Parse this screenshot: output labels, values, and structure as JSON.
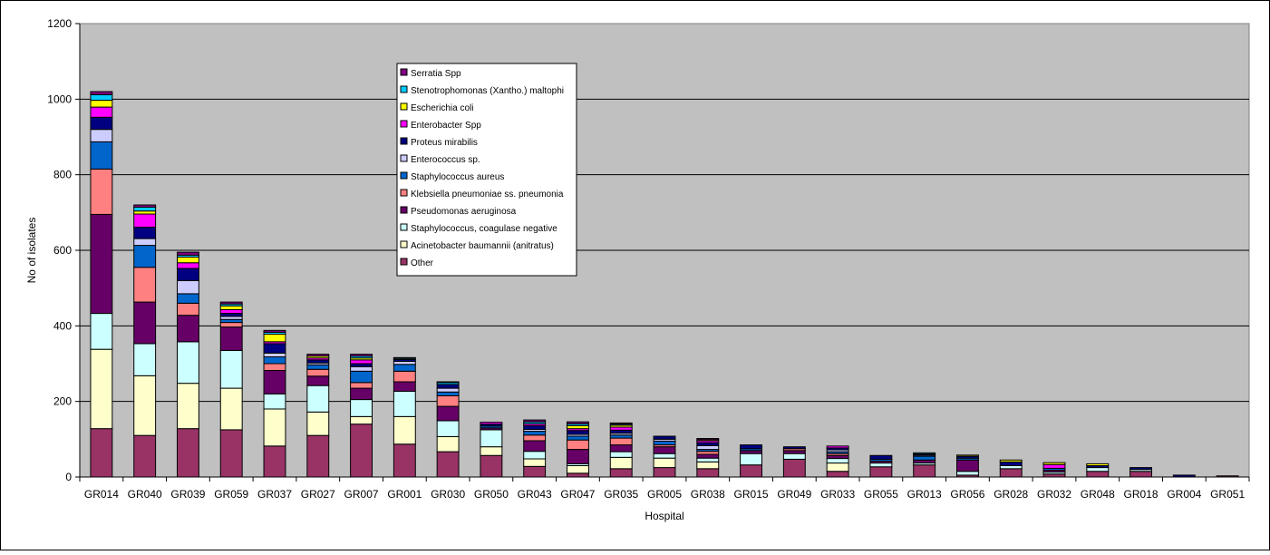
{
  "chart_data": {
    "type": "bar",
    "stacked": true,
    "xlabel": "Hospital",
    "ylabel": "No of isolates",
    "ylim": [
      0,
      1200
    ],
    "yticks": [
      0,
      200,
      400,
      600,
      800,
      1000,
      1200
    ],
    "grid": true,
    "legend_position": "top-center",
    "plot_background": "#C0C0C0",
    "categories": [
      "GR014",
      "GR040",
      "GR039",
      "GR059",
      "GR037",
      "GR027",
      "GR007",
      "GR001",
      "GR030",
      "GR050",
      "GR043",
      "GR047",
      "GR035",
      "GR005",
      "GR038",
      "GR015",
      "GR049",
      "GR033",
      "GR055",
      "GR013",
      "GR056",
      "GR028",
      "GR032",
      "GR048",
      "GR018",
      "GR004",
      "GR051"
    ],
    "series": [
      {
        "name": "Other",
        "color": "#993366",
        "values": [
          128,
          110,
          128,
          125,
          82,
          110,
          140,
          87,
          67,
          57,
          28,
          10,
          22,
          25,
          22,
          32,
          47,
          15,
          27,
          32,
          5,
          22,
          8,
          15,
          15,
          0,
          3
        ]
      },
      {
        "name": "Acinetobacter baumannii (anitratus)",
        "color": "#FFFFCC",
        "values": [
          210,
          158,
          120,
          110,
          98,
          62,
          20,
          73,
          40,
          23,
          20,
          20,
          30,
          25,
          18,
          0,
          0,
          22,
          0,
          0,
          0,
          0,
          0,
          0,
          0,
          0,
          0
        ]
      },
      {
        "name": "Staphylococcus, coagulase negative",
        "color": "#CCFFFF",
        "values": [
          95,
          85,
          110,
          100,
          40,
          70,
          45,
          67,
          42,
          45,
          20,
          5,
          15,
          12,
          10,
          30,
          15,
          12,
          10,
          5,
          10,
          8,
          5,
          10,
          5,
          0,
          0
        ]
      },
      {
        "name": "Pseudomonas aeruginosa",
        "color": "#660066",
        "values": [
          262,
          110,
          70,
          62,
          62,
          25,
          30,
          25,
          38,
          5,
          28,
          38,
          18,
          18,
          10,
          8,
          8,
          8,
          5,
          8,
          30,
          0,
          5,
          0,
          0,
          0,
          0
        ]
      },
      {
        "name": "Klebsiella pneumoniae ss. pneumonia",
        "color": "#FF8080",
        "values": [
          120,
          92,
          32,
          12,
          18,
          18,
          15,
          28,
          28,
          0,
          15,
          25,
          18,
          5,
          8,
          0,
          5,
          5,
          0,
          0,
          0,
          0,
          0,
          0,
          0,
          0,
          0
        ]
      },
      {
        "name": "Staphylococcus aureus",
        "color": "#0066CC",
        "values": [
          72,
          58,
          25,
          8,
          18,
          12,
          30,
          18,
          10,
          5,
          10,
          10,
          8,
          10,
          5,
          5,
          0,
          5,
          5,
          10,
          5,
          0,
          5,
          0,
          0,
          0,
          0
        ]
      },
      {
        "name": "Enterococcus sp.",
        "color": "#CCCCFF",
        "values": [
          33,
          18,
          35,
          8,
          10,
          5,
          12,
          8,
          10,
          0,
          5,
          5,
          5,
          5,
          10,
          0,
          0,
          5,
          0,
          3,
          0,
          0,
          0,
          0,
          0,
          0,
          0
        ]
      },
      {
        "name": "Proteus mirabilis",
        "color": "#000080",
        "values": [
          32,
          30,
          32,
          8,
          25,
          8,
          8,
          5,
          10,
          5,
          10,
          10,
          8,
          8,
          8,
          10,
          5,
          5,
          10,
          3,
          5,
          10,
          0,
          5,
          5,
          5,
          0
        ]
      },
      {
        "name": "Enterobacter Spp",
        "color": "#FF00FF",
        "values": [
          27,
          35,
          15,
          10,
          5,
          5,
          10,
          0,
          0,
          5,
          5,
          5,
          8,
          0,
          5,
          0,
          0,
          5,
          0,
          0,
          0,
          0,
          10,
          0,
          0,
          0,
          0
        ]
      },
      {
        "name": "Escherichia coli",
        "color": "#FFFF00",
        "values": [
          18,
          8,
          15,
          10,
          20,
          5,
          5,
          0,
          0,
          0,
          0,
          8,
          5,
          0,
          3,
          0,
          0,
          0,
          0,
          0,
          3,
          5,
          5,
          5,
          0,
          0,
          0
        ]
      },
      {
        "name": "Stenotrophomonas (Xantho.) maltophi",
        "color": "#00CCFF",
        "values": [
          15,
          10,
          5,
          5,
          5,
          0,
          5,
          3,
          5,
          0,
          5,
          5,
          3,
          0,
          0,
          0,
          0,
          0,
          0,
          3,
          0,
          0,
          0,
          0,
          0,
          0,
          0
        ]
      },
      {
        "name": "Serratia Spp",
        "color": "#800080",
        "values": [
          8,
          6,
          8,
          5,
          5,
          5,
          5,
          2,
          2,
          0,
          5,
          5,
          3,
          0,
          3,
          0,
          0,
          0,
          0,
          0,
          0,
          0,
          0,
          0,
          0,
          0,
          0
        ]
      }
    ]
  }
}
